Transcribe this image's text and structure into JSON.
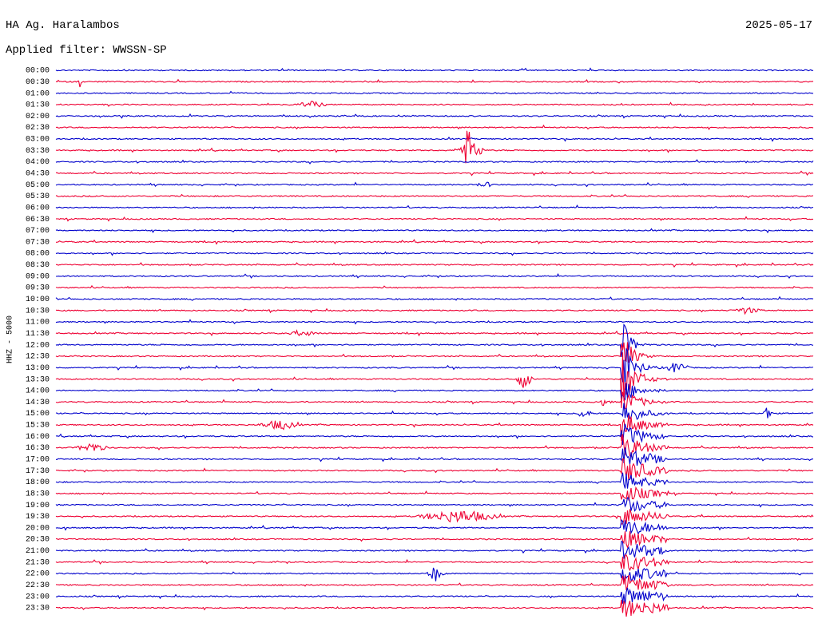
{
  "header": {
    "station": "HA Ag. Haralambos",
    "date": "2025-05-17",
    "filter": "Applied filter: WWSSN-SP"
  },
  "channel": "HHZ - 5000",
  "trace_colors": [
    "#0000cc",
    "#ee0033"
  ],
  "rows": [
    "00:00",
    "00:30",
    "01:00",
    "01:30",
    "02:00",
    "02:30",
    "03:00",
    "03:30",
    "04:00",
    "04:30",
    "05:00",
    "05:30",
    "06:00",
    "06:30",
    "07:00",
    "07:30",
    "08:00",
    "08:30",
    "09:00",
    "09:30",
    "10:00",
    "10:30",
    "11:00",
    "11:30",
    "12:00",
    "12:30",
    "13:00",
    "13:30",
    "14:00",
    "14:30",
    "15:00",
    "15:30",
    "16:00",
    "16:30",
    "17:00",
    "17:30",
    "18:00",
    "18:30",
    "19:00",
    "19:30",
    "20:00",
    "20:30",
    "21:00",
    "21:30",
    "22:00",
    "22:30",
    "23:00",
    "23:30"
  ]
}
